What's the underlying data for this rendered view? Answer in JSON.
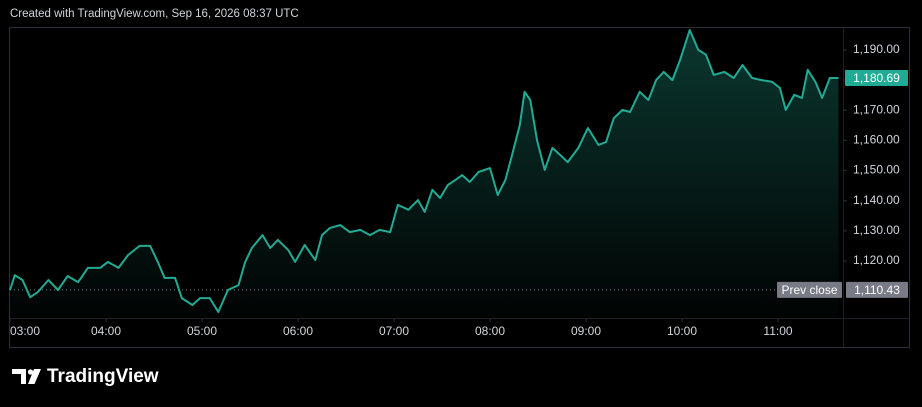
{
  "header": "Created with TradingView.com, Sep 16, 2026 08:37 UTC",
  "chart_data": {
    "type": "area",
    "x": [
      3,
      3.05,
      3.13,
      3.21,
      3.29,
      3.4,
      3.5,
      3.6,
      3.71,
      3.81,
      3.94,
      4.02,
      4.13,
      4.23,
      4.35,
      4.46,
      4.54,
      4.61,
      4.72,
      4.79,
      4.9,
      4.98,
      5.08,
      5.17,
      5.27,
      5.38,
      5.45,
      5.52,
      5.63,
      5.71,
      5.79,
      5.9,
      5.97,
      6.07,
      6.18,
      6.25,
      6.33,
      6.44,
      6.54,
      6.65,
      6.75,
      6.85,
      6.96,
      7.04,
      7.15,
      7.25,
      7.32,
      7.4,
      7.48,
      7.56,
      7.64,
      7.71,
      7.79,
      7.88,
      8,
      8.08,
      8.16,
      8.23,
      8.31,
      8.36,
      8.42,
      8.49,
      8.57,
      8.65,
      8.73,
      8.81,
      8.92,
      9.02,
      9.13,
      9.21,
      9.29,
      9.38,
      9.46,
      9.56,
      9.65,
      9.73,
      9.81,
      9.9,
      9.98,
      10.08,
      10.17,
      10.25,
      10.33,
      10.44,
      10.54,
      10.63,
      10.73,
      10.83,
      10.94,
      11.02,
      11.08,
      11.17,
      11.25,
      11.31,
      11.39,
      11.46,
      11.54,
      11.63
    ],
    "values": [
      1110.4,
      1115.3,
      1113.7,
      1108.0,
      1109.7,
      1113.7,
      1110.4,
      1115.0,
      1113.0,
      1117.7,
      1117.7,
      1119.7,
      1117.7,
      1122.0,
      1125.0,
      1125.0,
      1119.7,
      1114.4,
      1114.4,
      1107.7,
      1105.4,
      1107.7,
      1107.7,
      1103.1,
      1110.4,
      1112.0,
      1119.7,
      1124.3,
      1128.6,
      1124.3,
      1127.0,
      1123.6,
      1119.7,
      1125.3,
      1120.3,
      1128.6,
      1130.9,
      1131.9,
      1129.6,
      1130.3,
      1128.6,
      1130.3,
      1129.6,
      1138.6,
      1137.0,
      1140.2,
      1136.3,
      1143.6,
      1140.9,
      1145.2,
      1146.9,
      1148.5,
      1146.2,
      1149.5,
      1150.8,
      1141.9,
      1146.9,
      1155.2,
      1165.1,
      1176.1,
      1173.4,
      1160.1,
      1150.2,
      1157.5,
      1155.2,
      1152.8,
      1157.5,
      1164.1,
      1158.5,
      1159.5,
      1167.4,
      1170.1,
      1169.4,
      1176.1,
      1173.4,
      1180.0,
      1182.7,
      1180.0,
      1186.7,
      1196.6,
      1190.0,
      1188.4,
      1181.7,
      1182.7,
      1180.7,
      1185.0,
      1180.7,
      1180.0,
      1179.4,
      1177.4,
      1170.1,
      1175.1,
      1174.1,
      1183.4,
      1179.4,
      1174.1,
      1180.7,
      1180.69
    ],
    "color": "#22ab94",
    "xlim": [
      3,
      11.646
    ],
    "xticks": [
      {
        "value": 3,
        "label": "03:00"
      },
      {
        "value": 4,
        "label": "04:00"
      },
      {
        "value": 5,
        "label": "05:00"
      },
      {
        "value": 6,
        "label": "06:00"
      },
      {
        "value": 7,
        "label": "07:00"
      },
      {
        "value": 8,
        "label": "08:00"
      },
      {
        "value": 9,
        "label": "09:00"
      },
      {
        "value": 10,
        "label": "10:00"
      },
      {
        "value": 11,
        "label": "11:00"
      }
    ],
    "ylim": [
      1101.1,
      1197.6
    ],
    "yticks": [
      {
        "value": 1120,
        "label": "1,120.00"
      },
      {
        "value": 1130,
        "label": "1,130.00"
      },
      {
        "value": 1140,
        "label": "1,140.00"
      },
      {
        "value": 1150,
        "label": "1,150.00"
      },
      {
        "value": 1160,
        "label": "1,160.00"
      },
      {
        "value": 1170,
        "label": "1,170.00"
      },
      {
        "value": 1180,
        "label": "1,180.00"
      },
      {
        "value": 1190,
        "label": "1,190.00"
      }
    ],
    "last_value": {
      "value": 1180.69,
      "label": "1,180.69"
    },
    "prev_close": {
      "value": 1110.43,
      "label": "1,110.43"
    },
    "prev_close_title": "Prev close",
    "grid": false
  },
  "footer": "TradingView"
}
